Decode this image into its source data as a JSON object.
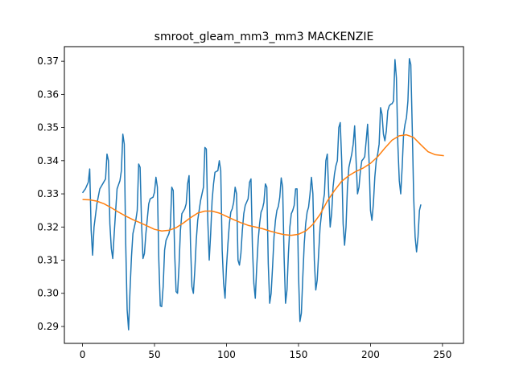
{
  "chart_data": {
    "type": "line",
    "title": "smroot_gleam_mm3_mm3 MACKENZIE",
    "xlabel": "",
    "ylabel": "",
    "xlim": [
      -12.6,
      264.6
    ],
    "ylim": [
      0.2849,
      0.3744
    ],
    "xticks": [
      0,
      50,
      100,
      150,
      200,
      250
    ],
    "yticks": [
      0.29,
      0.3,
      0.31,
      0.32,
      0.33,
      0.34,
      0.35,
      0.36,
      0.37
    ],
    "grid": false,
    "legend": "none",
    "series": [
      {
        "color": "#1f77b4",
        "points": [
          [
            0,
            0.3303
          ],
          [
            2,
            0.3315
          ],
          [
            4,
            0.3335
          ],
          [
            5,
            0.3375
          ],
          [
            6,
            0.319
          ],
          [
            7,
            0.3115
          ],
          [
            8,
            0.32
          ],
          [
            10,
            0.327
          ],
          [
            12,
            0.3315
          ],
          [
            14,
            0.333
          ],
          [
            16,
            0.3345
          ],
          [
            17,
            0.342
          ],
          [
            18,
            0.34
          ],
          [
            19,
            0.321
          ],
          [
            20,
            0.3135
          ],
          [
            21,
            0.3105
          ],
          [
            22,
            0.318
          ],
          [
            24,
            0.3315
          ],
          [
            26,
            0.334
          ],
          [
            27,
            0.337
          ],
          [
            28,
            0.348
          ],
          [
            29,
            0.345
          ],
          [
            30,
            0.315
          ],
          [
            31,
            0.295
          ],
          [
            32,
            0.289
          ],
          [
            33,
            0.301
          ],
          [
            34,
            0.311
          ],
          [
            35,
            0.318
          ],
          [
            37,
            0.322
          ],
          [
            38,
            0.325
          ],
          [
            39,
            0.339
          ],
          [
            40,
            0.338
          ],
          [
            41,
            0.321
          ],
          [
            42,
            0.3105
          ],
          [
            43,
            0.312
          ],
          [
            44,
            0.318
          ],
          [
            46,
            0.327
          ],
          [
            47,
            0.3285
          ],
          [
            49,
            0.329
          ],
          [
            50,
            0.3305
          ],
          [
            51,
            0.335
          ],
          [
            52,
            0.332
          ],
          [
            53,
            0.31
          ],
          [
            54,
            0.2962
          ],
          [
            55,
            0.296
          ],
          [
            56,
            0.302
          ],
          [
            57,
            0.313
          ],
          [
            58,
            0.316
          ],
          [
            60,
            0.318
          ],
          [
            61,
            0.32
          ],
          [
            62,
            0.332
          ],
          [
            63,
            0.331
          ],
          [
            64,
            0.312
          ],
          [
            65,
            0.3005
          ],
          [
            66,
            0.3
          ],
          [
            67,
            0.308
          ],
          [
            68,
            0.319
          ],
          [
            69,
            0.324
          ],
          [
            71,
            0.3255
          ],
          [
            72,
            0.327
          ],
          [
            73,
            0.333
          ],
          [
            74,
            0.3355
          ],
          [
            75,
            0.315
          ],
          [
            76,
            0.302
          ],
          [
            77,
            0.3
          ],
          [
            78,
            0.307
          ],
          [
            79,
            0.316
          ],
          [
            80,
            0.322
          ],
          [
            82,
            0.328
          ],
          [
            83,
            0.33
          ],
          [
            84,
            0.332
          ],
          [
            85,
            0.344
          ],
          [
            86,
            0.3435
          ],
          [
            87,
            0.322
          ],
          [
            88,
            0.31
          ],
          [
            89,
            0.318
          ],
          [
            90,
            0.328
          ],
          [
            91,
            0.333
          ],
          [
            92,
            0.3365
          ],
          [
            94,
            0.337
          ],
          [
            95,
            0.34
          ],
          [
            96,
            0.337
          ],
          [
            97,
            0.313
          ],
          [
            98,
            0.303
          ],
          [
            99,
            0.2985
          ],
          [
            100,
            0.308
          ],
          [
            101,
            0.315
          ],
          [
            102,
            0.321
          ],
          [
            103,
            0.3245
          ],
          [
            104,
            0.3255
          ],
          [
            105,
            0.3275
          ],
          [
            106,
            0.332
          ],
          [
            107,
            0.33
          ],
          [
            108,
            0.31
          ],
          [
            109,
            0.3085
          ],
          [
            110,
            0.312
          ],
          [
            111,
            0.319
          ],
          [
            112,
            0.324
          ],
          [
            113,
            0.3265
          ],
          [
            114,
            0.3275
          ],
          [
            115,
            0.3285
          ],
          [
            116,
            0.3335
          ],
          [
            117,
            0.3345
          ],
          [
            118,
            0.314
          ],
          [
            119,
            0.303
          ],
          [
            120,
            0.2985
          ],
          [
            121,
            0.308
          ],
          [
            122,
            0.316
          ],
          [
            123,
            0.321
          ],
          [
            124,
            0.3245
          ],
          [
            125,
            0.3255
          ],
          [
            126,
            0.3275
          ],
          [
            127,
            0.333
          ],
          [
            128,
            0.332
          ],
          [
            129,
            0.309
          ],
          [
            130,
            0.297
          ],
          [
            131,
            0.3
          ],
          [
            132,
            0.308
          ],
          [
            133,
            0.317
          ],
          [
            134,
            0.322
          ],
          [
            135,
            0.325
          ],
          [
            136,
            0.3262
          ],
          [
            137,
            0.329
          ],
          [
            138,
            0.3348
          ],
          [
            139,
            0.332
          ],
          [
            140,
            0.311
          ],
          [
            141,
            0.297
          ],
          [
            142,
            0.301
          ],
          [
            143,
            0.312
          ],
          [
            144,
            0.32
          ],
          [
            145,
            0.324
          ],
          [
            146,
            0.325
          ],
          [
            147,
            0.3265
          ],
          [
            148,
            0.3315
          ],
          [
            149,
            0.3315
          ],
          [
            150,
            0.306
          ],
          [
            151,
            0.2915
          ],
          [
            152,
            0.294
          ],
          [
            153,
            0.305
          ],
          [
            154,
            0.315
          ],
          [
            155,
            0.321
          ],
          [
            156,
            0.3245
          ],
          [
            157,
            0.326
          ],
          [
            158,
            0.33
          ],
          [
            159,
            0.335
          ],
          [
            160,
            0.33
          ],
          [
            161,
            0.31
          ],
          [
            162,
            0.301
          ],
          [
            163,
            0.304
          ],
          [
            164,
            0.312
          ],
          [
            165,
            0.32
          ],
          [
            166,
            0.324
          ],
          [
            167,
            0.327
          ],
          [
            168,
            0.33
          ],
          [
            169,
            0.34
          ],
          [
            170,
            0.342
          ],
          [
            171,
            0.33
          ],
          [
            172,
            0.32
          ],
          [
            173,
            0.324
          ],
          [
            174,
            0.332
          ],
          [
            175,
            0.336
          ],
          [
            176,
            0.3385
          ],
          [
            177,
            0.34
          ],
          [
            178,
            0.35
          ],
          [
            179,
            0.3515
          ],
          [
            180,
            0.34
          ],
          [
            181,
            0.321
          ],
          [
            182,
            0.3145
          ],
          [
            183,
            0.32
          ],
          [
            184,
            0.332
          ],
          [
            185,
            0.338
          ],
          [
            186,
            0.34
          ],
          [
            187,
            0.342
          ],
          [
            188,
            0.345
          ],
          [
            189,
            0.3505
          ],
          [
            190,
            0.34
          ],
          [
            191,
            0.33
          ],
          [
            192,
            0.332
          ],
          [
            193,
            0.337
          ],
          [
            194,
            0.34
          ],
          [
            195,
            0.3405
          ],
          [
            196,
            0.3412
          ],
          [
            197,
            0.346
          ],
          [
            198,
            0.351
          ],
          [
            199,
            0.34
          ],
          [
            200,
            0.325
          ],
          [
            201,
            0.322
          ],
          [
            202,
            0.327
          ],
          [
            203,
            0.335
          ],
          [
            204,
            0.34
          ],
          [
            205,
            0.342
          ],
          [
            206,
            0.345
          ],
          [
            207,
            0.356
          ],
          [
            208,
            0.354
          ],
          [
            209,
            0.348
          ],
          [
            210,
            0.346
          ],
          [
            211,
            0.349
          ],
          [
            212,
            0.355
          ],
          [
            213,
            0.3565
          ],
          [
            214,
            0.357
          ],
          [
            215,
            0.3572
          ],
          [
            216,
            0.358
          ],
          [
            217,
            0.3705
          ],
          [
            218,
            0.365
          ],
          [
            219,
            0.345
          ],
          [
            220,
            0.334
          ],
          [
            221,
            0.33
          ],
          [
            222,
            0.338
          ],
          [
            223,
            0.348
          ],
          [
            224,
            0.351
          ],
          [
            225,
            0.353
          ],
          [
            226,
            0.358
          ],
          [
            227,
            0.3708
          ],
          [
            228,
            0.369
          ],
          [
            229,
            0.35
          ],
          [
            230,
            0.329
          ],
          [
            231,
            0.317
          ],
          [
            232,
            0.3125
          ],
          [
            233,
            0.317
          ],
          [
            234,
            0.325
          ],
          [
            235,
            0.3268
          ]
        ]
      },
      {
        "color": "#ff7f0e",
        "points": [
          [
            0,
            0.3283
          ],
          [
            5,
            0.3282
          ],
          [
            10,
            0.3278
          ],
          [
            15,
            0.327
          ],
          [
            20,
            0.3258
          ],
          [
            25,
            0.3245
          ],
          [
            30,
            0.3233
          ],
          [
            35,
            0.3222
          ],
          [
            40,
            0.3213
          ],
          [
            45,
            0.3203
          ],
          [
            50,
            0.3193
          ],
          [
            55,
            0.3188
          ],
          [
            60,
            0.319
          ],
          [
            65,
            0.3198
          ],
          [
            70,
            0.3212
          ],
          [
            75,
            0.3228
          ],
          [
            80,
            0.3242
          ],
          [
            85,
            0.3248
          ],
          [
            90,
            0.3248
          ],
          [
            95,
            0.3242
          ],
          [
            100,
            0.3232
          ],
          [
            105,
            0.3222
          ],
          [
            110,
            0.3213
          ],
          [
            115,
            0.3205
          ],
          [
            120,
            0.32
          ],
          [
            125,
            0.3195
          ],
          [
            130,
            0.3188
          ],
          [
            135,
            0.3182
          ],
          [
            140,
            0.3177
          ],
          [
            145,
            0.3175
          ],
          [
            150,
            0.3178
          ],
          [
            155,
            0.3188
          ],
          [
            160,
            0.3208
          ],
          [
            165,
            0.3238
          ],
          [
            170,
            0.3278
          ],
          [
            175,
            0.331
          ],
          [
            180,
            0.3338
          ],
          [
            185,
            0.3355
          ],
          [
            190,
            0.3368
          ],
          [
            195,
            0.3378
          ],
          [
            200,
            0.3392
          ],
          [
            205,
            0.3412
          ],
          [
            210,
            0.3438
          ],
          [
            215,
            0.3462
          ],
          [
            220,
            0.3475
          ],
          [
            225,
            0.3478
          ],
          [
            230,
            0.347
          ],
          [
            235,
            0.3448
          ],
          [
            240,
            0.3427
          ],
          [
            245,
            0.3418
          ],
          [
            251,
            0.3415
          ]
        ]
      }
    ]
  }
}
